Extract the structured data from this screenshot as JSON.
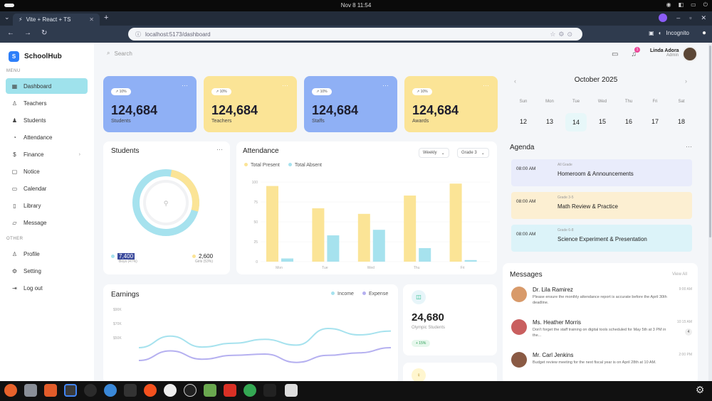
{
  "os": {
    "clock": "Nov 8  11:54"
  },
  "browser": {
    "tab_title": "Vite + React + TS",
    "url": "localhost:5173/dashboard",
    "incognito_label": "Incognito"
  },
  "sidebar": {
    "brand": "SchoolHub",
    "brand_letter": "S",
    "menu_label": "MENU",
    "other_label": "OTHER",
    "items": [
      {
        "label": "Dashboard",
        "icon": "grid-icon",
        "glyph": "▦"
      },
      {
        "label": "Teachers",
        "icon": "teacher-icon",
        "glyph": "♙"
      },
      {
        "label": "Students",
        "icon": "students-icon",
        "glyph": "♟"
      },
      {
        "label": "Attendance",
        "icon": "attendance-icon",
        "glyph": "◔"
      },
      {
        "label": "Finance",
        "icon": "dollar-icon",
        "glyph": "$"
      },
      {
        "label": "Notice",
        "icon": "notice-icon",
        "glyph": "▢"
      },
      {
        "label": "Calendar",
        "icon": "calendar-icon",
        "glyph": "▭"
      },
      {
        "label": "Library",
        "icon": "book-icon",
        "glyph": "▯"
      },
      {
        "label": "Message",
        "icon": "message-icon",
        "glyph": "▱"
      }
    ],
    "other_items": [
      {
        "label": "Profile",
        "icon": "profile-icon",
        "glyph": "♙"
      },
      {
        "label": "Setting",
        "icon": "gear-icon",
        "glyph": "⚙"
      },
      {
        "label": "Log out",
        "icon": "logout-icon",
        "glyph": "⇥"
      }
    ]
  },
  "header": {
    "search_placeholder": "Search",
    "user_name": "Linda Adora",
    "user_role": "Admin",
    "notification_count": "1"
  },
  "stats": [
    {
      "badge": "↗ 10%",
      "value": "124,684",
      "label": "Students",
      "color": "#8fb0f5"
    },
    {
      "badge": "↗ 10%",
      "value": "124,684",
      "label": "Teachers",
      "color": "#fbe496"
    },
    {
      "badge": "↗ 10%",
      "value": "124,684",
      "label": "Staffs",
      "color": "#8fb0f5"
    },
    {
      "badge": "↗ 10%",
      "value": "124,684",
      "label": "Awards",
      "color": "#fbe496"
    }
  ],
  "students_card": {
    "title": "Students",
    "boys_value": "7,400",
    "boys_label": "Boys (47%)",
    "girls_value": "2,600",
    "girls_label": "Girls (53%)"
  },
  "attendance": {
    "title": "Attendance",
    "filter_period": "Weekly",
    "filter_grade": "Grade 3",
    "legend_present": "Total Present",
    "legend_absent": "Total Absent"
  },
  "chart_data": [
    {
      "type": "bar",
      "title": "Attendance",
      "categories": [
        "Mon",
        "Tue",
        "Wed",
        "Thu",
        "Fri"
      ],
      "series": [
        {
          "name": "Total Present",
          "color": "#fbe496",
          "values": [
            95,
            67,
            60,
            83,
            98
          ]
        },
        {
          "name": "Total Absent",
          "color": "#a6e2ee",
          "values": [
            4,
            33,
            40,
            17,
            2
          ]
        }
      ],
      "yticks": [
        "100",
        "75",
        "50",
        "25",
        "0"
      ],
      "ylim": [
        0,
        100
      ]
    },
    {
      "type": "line",
      "title": "Earnings",
      "x": [
        0,
        1,
        2,
        3,
        4,
        5,
        6,
        7,
        8
      ],
      "series": [
        {
          "name": "Income",
          "color": "#a6e2ee",
          "values": [
            40,
            58,
            41,
            47,
            53,
            44,
            70,
            60,
            66
          ]
        },
        {
          "name": "Expense",
          "color": "#b5b0f0",
          "values": [
            20,
            35,
            22,
            28,
            30,
            17,
            28,
            32,
            40
          ]
        }
      ],
      "yticks": [
        "$90K",
        "$70K",
        "$50K"
      ],
      "ylim": [
        0,
        100
      ]
    }
  ],
  "earnings": {
    "title": "Earnings",
    "legend_income": "Income",
    "legend_expense": "Expense"
  },
  "olympic": {
    "value": "24,680",
    "label": "Olympic Students",
    "badge": "+ 15%"
  },
  "calendar": {
    "month": "October 2025",
    "days": [
      {
        "dow": "Sun",
        "num": "12"
      },
      {
        "dow": "Mon",
        "num": "13"
      },
      {
        "dow": "Tue",
        "num": "14"
      },
      {
        "dow": "Wed",
        "num": "15"
      },
      {
        "dow": "Thu",
        "num": "16"
      },
      {
        "dow": "Fri",
        "num": "17"
      },
      {
        "dow": "Sat",
        "num": "18"
      }
    ]
  },
  "agenda": {
    "title": "Agenda",
    "items": [
      {
        "time": "08:00 AM",
        "grade": "All Grade",
        "subject": "Homeroom & Announcements",
        "color": "#e9ecfb"
      },
      {
        "time": "08:00 AM",
        "grade": "Grade 3-5",
        "subject": "Math Review & Practice",
        "color": "#fcefd2"
      },
      {
        "time": "08:00 AM",
        "grade": "Grade 6-8",
        "subject": "Science Experiment & Presentation",
        "color": "#dcf3f9"
      }
    ]
  },
  "messages": {
    "title": "Messages",
    "view_all": "View All",
    "items": [
      {
        "name": "Dr. Lila Ramirez",
        "text": "Please ensure the monthly attendance report is accurate before the April 30th deadline.",
        "time": "9:00 AM",
        "badge": "",
        "avatar_color": "#d89a6a"
      },
      {
        "name": "Ms. Heather Morris",
        "text": "Don't forget the staff training on digital tools scheduled for May 5th at 3 PM in the...",
        "time": "10:15 AM",
        "badge": "4",
        "avatar_color": "#c95f5f"
      },
      {
        "name": "Mr. Carl Jenkins",
        "text": "Budget review meeting for the next fiscal year is on April 28th at 10 AM.",
        "time": "2:00 PM",
        "badge": "",
        "avatar_color": "#8a5a44"
      }
    ]
  }
}
